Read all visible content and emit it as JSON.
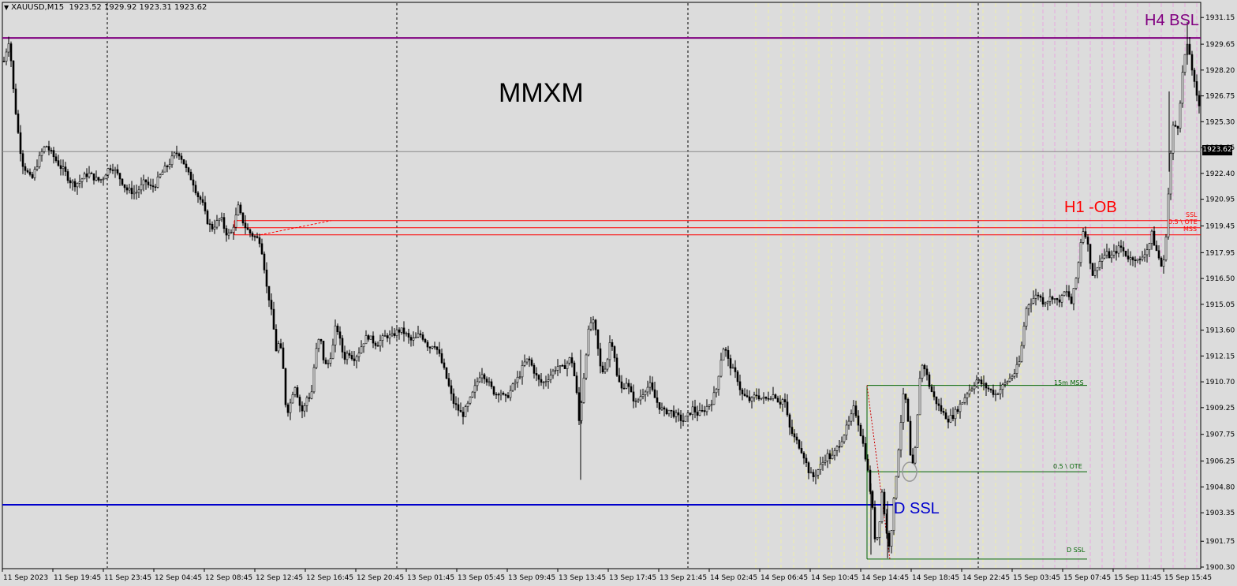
{
  "header": {
    "symbol_timeframe": "XAUUSD,M15",
    "ohlc": "1923.52 1929.92 1923.31 1923.62"
  },
  "current_price_label": "1923.62",
  "annotations": {
    "title": "MMXM",
    "h4_bsl": "H4 BSL",
    "h1_ob": "H1 -OB",
    "d_ssl_big": "D SSL",
    "ob_ssl": "SSL",
    "ob_ote": "0.5 \\ OTE",
    "ob_mss": "MSS",
    "fib_15m_mss": "15m MSS",
    "fib_ote": "0.5 \\ OTE",
    "fib_d_ssl": "D SSL"
  },
  "colors": {
    "background": "#dcdcdc",
    "candle": "#000000",
    "h4_bsl_line": "#800080",
    "d_ssl_line": "#0000cc",
    "order_block": "#ff0000",
    "fib": "#006400",
    "session_day": "#eeeeaa",
    "session_pink": "#e9a8e0"
  },
  "chart_data": {
    "type": "candlestick",
    "symbol": "XAUUSD",
    "timeframe": "M15",
    "y_range": [
      1900.3,
      1932.0
    ],
    "price_ticks": [
      "1931.15",
      "1929.65",
      "1928.20",
      "1926.75",
      "1925.30",
      "1923.85",
      "1922.40",
      "1920.95",
      "1919.45",
      "1917.95",
      "1916.50",
      "1915.05",
      "1913.60",
      "1912.15",
      "1910.70",
      "1909.25",
      "1907.75",
      "1906.25",
      "1904.80",
      "1903.35",
      "1901.75",
      "1900.30"
    ],
    "x_ticks": [
      "11 Sep 2023",
      "11 Sep 19:45",
      "11 Sep 23:45",
      "12 Sep 04:45",
      "12 Sep 08:45",
      "12 Sep 12:45",
      "12 Sep 16:45",
      "12 Sep 20:45",
      "13 Sep 01:45",
      "13 Sep 05:45",
      "13 Sep 09:45",
      "13 Sep 13:45",
      "13 Sep 17:45",
      "13 Sep 21:45",
      "14 Sep 02:45",
      "14 Sep 06:45",
      "14 Sep 10:45",
      "14 Sep 14:45",
      "14 Sep 18:45",
      "14 Sep 22:45",
      "15 Sep 03:45",
      "15 Sep 07:45",
      "15 Sep 11:45",
      "15 Sep 15:45"
    ],
    "current_price": 1923.62,
    "levels": {
      "h4_bsl": 1930.0,
      "d_ssl": 1903.8,
      "ob_top": 1919.75,
      "ob_mid": 1919.35,
      "ob_bottom": 1918.95,
      "fib_15m_mss": 1910.5,
      "fib_ote": 1905.65,
      "fib_d_ssl": 1900.75
    },
    "close_path": [
      [
        0,
        1926.0
      ],
      [
        4,
        1928.5
      ],
      [
        8,
        1929.3
      ],
      [
        12,
        1930.0
      ],
      [
        16,
        1927.5
      ],
      [
        22,
        1925.0
      ],
      [
        28,
        1923.0
      ],
      [
        34,
        1922.5
      ],
      [
        40,
        1922.0
      ],
      [
        46,
        1922.8
      ],
      [
        52,
        1923.5
      ],
      [
        58,
        1924.0
      ],
      [
        64,
        1923.6
      ],
      [
        70,
        1923.2
      ],
      [
        76,
        1922.8
      ],
      [
        82,
        1922.5
      ],
      [
        88,
        1922.0
      ],
      [
        94,
        1921.8
      ],
      [
        100,
        1921.9
      ],
      [
        106,
        1922.2
      ],
      [
        112,
        1922.4
      ],
      [
        118,
        1922.2
      ],
      [
        124,
        1922.0
      ],
      [
        130,
        1922.1
      ],
      [
        136,
        1922.6
      ],
      [
        142,
        1922.8
      ],
      [
        148,
        1922.4
      ],
      [
        154,
        1922.0
      ],
      [
        160,
        1921.5
      ],
      [
        166,
        1921.4
      ],
      [
        172,
        1921.3
      ],
      [
        178,
        1921.6
      ],
      [
        184,
        1922.0
      ],
      [
        190,
        1921.6
      ],
      [
        196,
        1921.7
      ],
      [
        202,
        1922.2
      ],
      [
        208,
        1922.6
      ],
      [
        214,
        1922.9
      ],
      [
        220,
        1923.4
      ],
      [
        226,
        1923.6
      ],
      [
        232,
        1923.1
      ],
      [
        238,
        1922.4
      ],
      [
        244,
        1922.0
      ],
      [
        250,
        1921.2
      ],
      [
        256,
        1920.8
      ],
      [
        262,
        1919.8
      ],
      [
        268,
        1919.3
      ],
      [
        274,
        1919.6
      ],
      [
        280,
        1919.9
      ],
      [
        286,
        1919.1
      ],
      [
        292,
        1918.9
      ],
      [
        298,
        1919.8
      ],
      [
        302,
        1920.5
      ],
      [
        306,
        1919.9
      ],
      [
        312,
        1919.3
      ],
      [
        318,
        1919.0
      ],
      [
        324,
        1918.8
      ],
      [
        330,
        1918.6
      ],
      [
        334,
        1917.5
      ],
      [
        338,
        1916.0
      ],
      [
        342,
        1915.2
      ],
      [
        346,
        1914.0
      ],
      [
        350,
        1912.5
      ],
      [
        354,
        1912.9
      ],
      [
        358,
        1912.0
      ],
      [
        362,
        1909.5
      ],
      [
        366,
        1909.0
      ],
      [
        370,
        1910.0
      ],
      [
        374,
        1910.5
      ],
      [
        378,
        1909.8
      ],
      [
        382,
        1909.0
      ],
      [
        386,
        1909.3
      ],
      [
        390,
        1910.0
      ],
      [
        394,
        1909.7
      ],
      [
        398,
        1911.5
      ],
      [
        402,
        1912.8
      ],
      [
        406,
        1913.2
      ],
      [
        410,
        1912.0
      ],
      [
        414,
        1911.5
      ],
      [
        418,
        1912.0
      ],
      [
        422,
        1912.7
      ],
      [
        426,
        1914.0
      ],
      [
        430,
        1913.2
      ],
      [
        436,
        1912.0
      ],
      [
        442,
        1912.4
      ],
      [
        448,
        1912.0
      ],
      [
        454,
        1912.3
      ],
      [
        460,
        1912.9
      ],
      [
        466,
        1913.3
      ],
      [
        472,
        1913.0
      ],
      [
        478,
        1912.8
      ],
      [
        484,
        1913.1
      ],
      [
        490,
        1913.3
      ],
      [
        496,
        1913.2
      ],
      [
        502,
        1913.5
      ],
      [
        508,
        1913.6
      ],
      [
        514,
        1913.4
      ],
      [
        520,
        1913.0
      ],
      [
        526,
        1913.1
      ],
      [
        532,
        1913.4
      ],
      [
        538,
        1913.1
      ],
      [
        544,
        1912.6
      ],
      [
        550,
        1912.9
      ],
      [
        556,
        1912.3
      ],
      [
        562,
        1911.5
      ],
      [
        568,
        1910.6
      ],
      [
        574,
        1909.6
      ],
      [
        580,
        1909.2
      ],
      [
        586,
        1908.8
      ],
      [
        592,
        1909.3
      ],
      [
        598,
        1909.9
      ],
      [
        604,
        1910.6
      ],
      [
        610,
        1911.3
      ],
      [
        616,
        1910.9
      ],
      [
        622,
        1910.4
      ],
      [
        628,
        1910.0
      ],
      [
        634,
        1910.2
      ],
      [
        640,
        1909.7
      ],
      [
        646,
        1910.1
      ],
      [
        652,
        1910.6
      ],
      [
        658,
        1911.0
      ],
      [
        664,
        1911.7
      ],
      [
        670,
        1912.0
      ],
      [
        676,
        1911.4
      ],
      [
        682,
        1910.8
      ],
      [
        688,
        1910.6
      ],
      [
        694,
        1910.9
      ],
      [
        700,
        1911.2
      ],
      [
        706,
        1911.6
      ],
      [
        712,
        1911.4
      ],
      [
        718,
        1911.7
      ],
      [
        724,
        1912.1
      ],
      [
        730,
        1910.5
      ],
      [
        734,
        1908.5
      ],
      [
        738,
        1910.0
      ],
      [
        742,
        1912.0
      ],
      [
        746,
        1913.5
      ],
      [
        750,
        1914.2
      ],
      [
        754,
        1913.8
      ],
      [
        758,
        1912.5
      ],
      [
        762,
        1911.2
      ],
      [
        766,
        1911.4
      ],
      [
        770,
        1912.0
      ],
      [
        774,
        1913.2
      ],
      [
        778,
        1912.5
      ],
      [
        782,
        1911.0
      ],
      [
        788,
        1910.3
      ],
      [
        794,
        1910.7
      ],
      [
        800,
        1910.0
      ],
      [
        806,
        1909.5
      ],
      [
        812,
        1909.9
      ],
      [
        818,
        1910.3
      ],
      [
        824,
        1910.5
      ],
      [
        830,
        1909.8
      ],
      [
        836,
        1909.3
      ],
      [
        842,
        1909.0
      ],
      [
        848,
        1909.1
      ],
      [
        854,
        1908.9
      ],
      [
        860,
        1908.7
      ],
      [
        866,
        1908.5
      ],
      [
        872,
        1908.8
      ],
      [
        878,
        1909.2
      ],
      [
        884,
        1908.9
      ],
      [
        890,
        1909.0
      ],
      [
        896,
        1909.3
      ],
      [
        902,
        1909.6
      ],
      [
        908,
        1910.3
      ],
      [
        914,
        1912.0
      ],
      [
        918,
        1912.8
      ],
      [
        922,
        1912.0
      ],
      [
        928,
        1911.4
      ],
      [
        934,
        1911.0
      ],
      [
        940,
        1910.0
      ],
      [
        946,
        1909.8
      ],
      [
        952,
        1909.6
      ],
      [
        958,
        1910.0
      ],
      [
        964,
        1909.8
      ],
      [
        970,
        1909.7
      ],
      [
        976,
        1909.9
      ],
      [
        982,
        1910.0
      ],
      [
        988,
        1909.5
      ],
      [
        994,
        1909.8
      ],
      [
        1000,
        1908.2
      ],
      [
        1006,
        1907.6
      ],
      [
        1012,
        1907.2
      ],
      [
        1018,
        1906.7
      ],
      [
        1024,
        1905.8
      ],
      [
        1030,
        1905.3
      ],
      [
        1036,
        1905.7
      ],
      [
        1042,
        1906.1
      ],
      [
        1048,
        1906.6
      ],
      [
        1054,
        1906.4
      ],
      [
        1060,
        1906.9
      ],
      [
        1066,
        1907.4
      ],
      [
        1072,
        1908.0
      ],
      [
        1078,
        1908.6
      ],
      [
        1082,
        1909.2
      ],
      [
        1086,
        1908.8
      ],
      [
        1090,
        1908.0
      ],
      [
        1094,
        1907.2
      ],
      [
        1098,
        1906.3
      ],
      [
        1102,
        1905.0
      ],
      [
        1106,
        1903.5
      ],
      [
        1110,
        1901.5
      ],
      [
        1114,
        1902.5
      ],
      [
        1118,
        1904.5
      ],
      [
        1122,
        1903.0
      ],
      [
        1126,
        1901.3
      ],
      [
        1130,
        1902.5
      ],
      [
        1134,
        1904.5
      ],
      [
        1138,
        1906.5
      ],
      [
        1142,
        1908.5
      ],
      [
        1146,
        1910.3
      ],
      [
        1150,
        1909.0
      ],
      [
        1154,
        1906.5
      ],
      [
        1158,
        1905.8
      ],
      [
        1162,
        1908.0
      ],
      [
        1166,
        1911.0
      ],
      [
        1170,
        1911.8
      ],
      [
        1174,
        1911.2
      ],
      [
        1178,
        1910.5
      ],
      [
        1184,
        1909.8
      ],
      [
        1190,
        1909.3
      ],
      [
        1196,
        1908.9
      ],
      [
        1202,
        1908.6
      ],
      [
        1208,
        1908.8
      ],
      [
        1214,
        1909.2
      ],
      [
        1220,
        1909.6
      ],
      [
        1226,
        1910.1
      ],
      [
        1232,
        1910.4
      ],
      [
        1238,
        1910.8
      ],
      [
        1244,
        1910.6
      ],
      [
        1250,
        1910.4
      ],
      [
        1256,
        1910.2
      ],
      [
        1262,
        1910.0
      ],
      [
        1268,
        1910.3
      ],
      [
        1274,
        1910.6
      ],
      [
        1280,
        1910.9
      ],
      [
        1286,
        1911.2
      ],
      [
        1292,
        1911.8
      ],
      [
        1296,
        1913.0
      ],
      [
        1300,
        1914.7
      ],
      [
        1304,
        1915.1
      ],
      [
        1310,
        1915.4
      ],
      [
        1316,
        1915.6
      ],
      [
        1322,
        1915.2
      ],
      [
        1328,
        1915.3
      ],
      [
        1334,
        1915.5
      ],
      [
        1340,
        1915.2
      ],
      [
        1346,
        1915.4
      ],
      [
        1350,
        1915.8
      ],
      [
        1354,
        1915.6
      ],
      [
        1358,
        1915.1
      ],
      [
        1362,
        1916.0
      ],
      [
        1366,
        1917.0
      ],
      [
        1370,
        1918.6
      ],
      [
        1374,
        1919.4
      ],
      [
        1378,
        1918.6
      ],
      [
        1382,
        1917.5
      ],
      [
        1386,
        1916.5
      ],
      [
        1390,
        1917.2
      ],
      [
        1396,
        1917.6
      ],
      [
        1402,
        1917.9
      ],
      [
        1408,
        1917.7
      ],
      [
        1414,
        1918.0
      ],
      [
        1420,
        1918.3
      ],
      [
        1426,
        1917.9
      ],
      [
        1432,
        1917.6
      ],
      [
        1438,
        1917.7
      ],
      [
        1444,
        1917.4
      ],
      [
        1450,
        1917.9
      ],
      [
        1456,
        1918.3
      ],
      [
        1460,
        1919.0
      ],
      [
        1464,
        1918.3
      ],
      [
        1468,
        1917.8
      ],
      [
        1472,
        1917.2
      ],
      [
        1476,
        1917.5
      ],
      [
        1480,
        1920.5
      ],
      [
        1484,
        1923.5
      ],
      [
        1488,
        1925.5
      ],
      [
        1492,
        1924.6
      ],
      [
        1496,
        1926.5
      ],
      [
        1500,
        1928.5
      ],
      [
        1504,
        1929.6
      ],
      [
        1508,
        1929.1
      ],
      [
        1512,
        1928.0
      ],
      [
        1516,
        1926.8
      ],
      [
        1520,
        1926.2
      ]
    ]
  }
}
